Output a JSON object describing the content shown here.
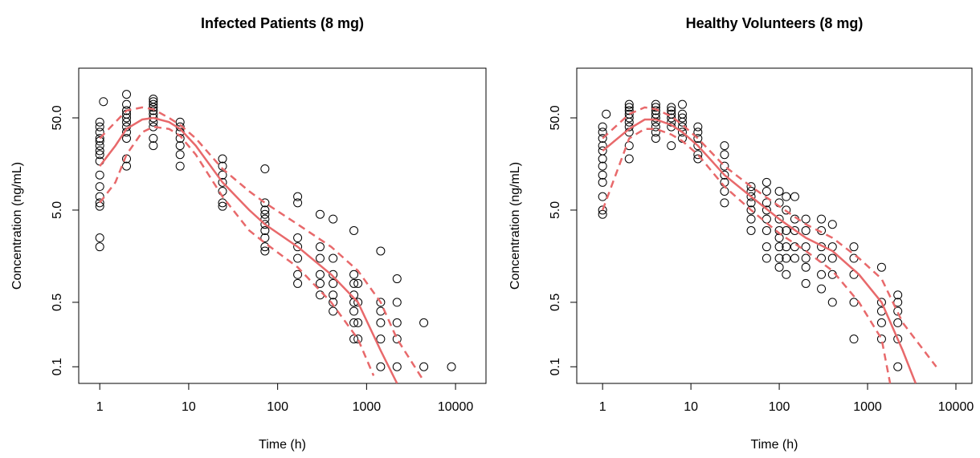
{
  "chart_data": [
    {
      "type": "scatter",
      "title": "Infected Patients (8 mg)",
      "xlabel": "Time (h)",
      "ylabel": "Concentration (ng/mL)",
      "xlog": true,
      "ylog": true,
      "xlim": [
        0.58,
        22000
      ],
      "ylim": [
        0.066,
        173
      ],
      "xticks": [
        1,
        10,
        100,
        1000,
        10000
      ],
      "yticks": [
        {
          "value": 0.1,
          "label": "0.1"
        },
        {
          "value": 0.5,
          "label": "0.5"
        },
        {
          "value": 5,
          "label": "5.0"
        },
        {
          "value": 50,
          "label": "50.0"
        }
      ],
      "points": {
        "color": "#000000",
        "x": [
          1,
          1,
          1,
          1,
          1,
          1,
          1,
          1,
          1,
          1,
          1,
          1,
          1,
          1,
          1,
          1,
          1.1,
          2,
          2,
          2,
          2,
          2,
          2,
          2,
          2,
          2,
          2,
          2,
          4,
          4,
          4,
          4,
          4,
          4,
          4,
          4,
          4,
          4,
          4,
          8,
          8,
          8,
          8,
          8,
          8,
          8,
          24,
          24,
          24,
          24,
          24,
          24,
          24,
          72,
          72,
          72,
          72,
          72,
          72,
          72,
          72,
          72,
          72,
          168,
          168,
          168,
          168,
          168,
          168,
          168,
          300,
          300,
          300,
          300,
          300,
          300,
          420,
          420,
          420,
          420,
          420,
          420,
          420,
          720,
          720,
          720,
          720,
          720,
          720,
          720,
          720,
          800,
          800,
          800,
          800,
          1440,
          1440,
          1440,
          1440,
          1440,
          1440,
          2200,
          2200,
          2200,
          2200,
          2200,
          4400,
          4400,
          9000
        ],
        "values": [
          35,
          40,
          28,
          22,
          20,
          12,
          9,
          7,
          6,
          5.5,
          2.5,
          2,
          17,
          25,
          30,
          45,
          75,
          90,
          70,
          60,
          55,
          50,
          45,
          40,
          35,
          30,
          18,
          15,
          80,
          75,
          70,
          65,
          60,
          55,
          50,
          45,
          40,
          30,
          25,
          45,
          40,
          35,
          30,
          25,
          20,
          15,
          18,
          15,
          12,
          10,
          8,
          6,
          5.5,
          14,
          6,
          5,
          4.5,
          4,
          3.5,
          3,
          2.5,
          2,
          1.8,
          7,
          6,
          2.5,
          2,
          1.5,
          1,
          0.8,
          4.5,
          2,
          1.5,
          1,
          0.8,
          0.6,
          4,
          1.5,
          1,
          0.8,
          0.6,
          0.5,
          0.4,
          3,
          1,
          0.8,
          0.6,
          0.5,
          0.4,
          0.3,
          0.2,
          0.8,
          0.5,
          0.3,
          0.2,
          1.8,
          0.5,
          0.4,
          0.3,
          0.2,
          0.1,
          0.9,
          0.5,
          0.3,
          0.2,
          0.1,
          0.3,
          0.1,
          0.1
        ]
      },
      "series": [
        {
          "color": "#e8696b",
          "dashed": false,
          "x": [
            1,
            1.5,
            2,
            3,
            4,
            6,
            8,
            12,
            24,
            48,
            72,
            168,
            400,
            800,
            1440,
            2200
          ],
          "values": [
            15,
            25,
            38,
            48,
            50,
            45,
            38,
            25,
            10,
            5,
            3.5,
            2,
            1,
            0.5,
            0.15,
            0.066
          ]
        },
        {
          "color": "#e8696b",
          "dashed": true,
          "x": [
            1,
            1.5,
            2,
            3,
            4,
            6,
            8,
            12,
            24,
            48,
            72,
            168,
            400,
            800,
            1440,
            2200,
            4400
          ],
          "values": [
            30,
            45,
            60,
            65,
            62,
            50,
            42,
            30,
            14,
            8,
            6,
            3.5,
            2,
            1.1,
            0.5,
            0.2,
            0.07
          ]
        },
        {
          "color": "#e8696b",
          "dashed": true,
          "x": [
            1,
            1.5,
            2,
            3,
            4,
            6,
            8,
            12,
            24,
            48,
            72,
            168,
            400,
            800,
            1200
          ],
          "values": [
            6,
            10,
            20,
            35,
            40,
            38,
            32,
            20,
            7,
            3,
            2.2,
            1.2,
            0.5,
            0.2,
            0.08
          ]
        }
      ]
    },
    {
      "type": "scatter",
      "title": "Healthy Volunteers (8 mg)",
      "xlabel": "Time (h)",
      "ylabel": "Concentration (ng/mL)",
      "xlog": true,
      "ylog": true,
      "xlim": [
        0.51,
        15200
      ],
      "ylim": [
        0.066,
        173
      ],
      "xticks": [
        1,
        10,
        100,
        1000,
        10000
      ],
      "yticks": [
        {
          "value": 0.1,
          "label": "0.1"
        },
        {
          "value": 0.5,
          "label": "0.5"
        },
        {
          "value": 5,
          "label": "5.0"
        },
        {
          "value": 50,
          "label": "50.0"
        }
      ],
      "points": {
        "color": "#000000",
        "x": [
          1,
          1,
          1,
          1,
          1,
          1,
          1,
          1,
          1,
          1,
          1,
          1,
          1.1,
          2,
          2,
          2,
          2,
          2,
          2,
          2,
          2,
          2,
          2,
          4,
          4,
          4,
          4,
          4,
          4,
          4,
          4,
          4,
          6,
          6,
          6,
          6,
          6,
          6,
          6,
          8,
          8,
          8,
          8,
          8,
          8,
          8,
          12,
          12,
          12,
          12,
          12,
          12,
          24,
          24,
          24,
          24,
          24,
          24,
          24,
          48,
          48,
          48,
          48,
          48,
          48,
          48,
          72,
          72,
          72,
          72,
          72,
          72,
          72,
          72,
          100,
          100,
          100,
          100,
          100,
          100,
          100,
          100,
          120,
          120,
          120,
          120,
          120,
          120,
          150,
          150,
          150,
          150,
          150,
          200,
          200,
          200,
          200,
          200,
          200,
          300,
          300,
          300,
          300,
          300,
          300,
          400,
          400,
          400,
          400,
          400,
          700,
          700,
          700,
          700,
          700,
          1440,
          1440,
          1440,
          1440,
          1440,
          2200,
          2200,
          2200,
          2200,
          2200,
          2200
        ],
        "values": [
          40,
          35,
          30,
          25,
          22,
          18,
          15,
          12,
          10,
          7,
          5,
          4.5,
          55,
          70,
          65,
          60,
          55,
          50,
          45,
          40,
          35,
          25,
          18,
          70,
          65,
          60,
          55,
          50,
          45,
          40,
          35,
          30,
          65,
          60,
          55,
          50,
          45,
          40,
          25,
          70,
          55,
          50,
          45,
          40,
          35,
          30,
          40,
          35,
          30,
          25,
          20,
          18,
          25,
          20,
          15,
          12,
          10,
          8,
          6,
          9,
          8,
          7,
          6,
          5,
          4,
          3,
          10,
          8,
          6,
          5,
          4,
          3,
          2,
          1.5,
          8,
          6,
          4,
          3,
          2.5,
          2,
          1.5,
          1.2,
          7,
          5,
          3,
          2,
          1.5,
          1,
          7,
          4,
          3,
          2,
          1.5,
          4,
          3,
          2,
          1.5,
          1.2,
          0.8,
          4,
          3,
          2,
          1.5,
          1,
          0.7,
          3.5,
          2,
          1.5,
          1,
          0.5,
          2,
          1.5,
          1,
          0.5,
          0.2,
          1.2,
          0.5,
          0.4,
          0.3,
          0.2,
          0.6,
          0.5,
          0.4,
          0.3,
          0.2,
          0.1
        ]
      },
      "series": [
        {
          "color": "#e8696b",
          "dashed": false,
          "x": [
            1,
            2,
            3,
            4,
            6,
            8,
            12,
            24,
            48,
            100,
            200,
            400,
            800,
            1440,
            2500,
            3500
          ],
          "values": [
            22,
            38,
            48,
            48,
            42,
            35,
            25,
            12,
            7,
            4,
            2.5,
            1.8,
            1,
            0.5,
            0.15,
            0.066
          ]
        },
        {
          "color": "#e8696b",
          "dashed": true,
          "x": [
            1,
            2,
            3,
            4,
            6,
            8,
            12,
            24,
            48,
            100,
            200,
            400,
            800,
            1440,
            2500,
            6000
          ],
          "values": [
            30,
            55,
            65,
            62,
            52,
            42,
            30,
            15,
            9,
            5.5,
            3.5,
            2.5,
            1.5,
            0.9,
            0.3,
            0.1
          ]
        },
        {
          "color": "#e8696b",
          "dashed": true,
          "x": [
            1,
            2,
            3,
            4,
            6,
            8,
            12,
            24,
            48,
            100,
            200,
            400,
            800,
            1440,
            1800
          ],
          "values": [
            5,
            30,
            38,
            38,
            33,
            28,
            20,
            9,
            5,
            2.8,
            1.8,
            1.1,
            0.5,
            0.2,
            0.066
          ]
        }
      ]
    }
  ]
}
